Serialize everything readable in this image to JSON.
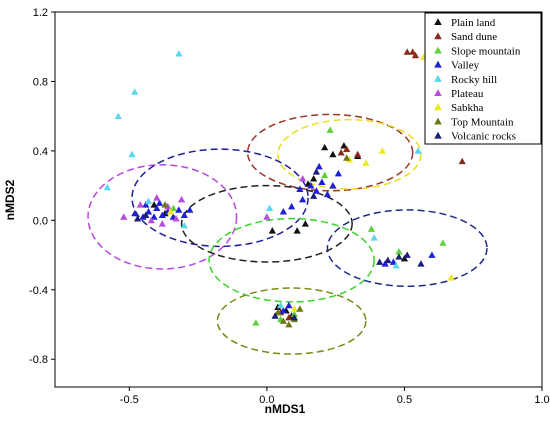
{
  "chart_data": {
    "type": "scatter",
    "xlabel": "nMDS1",
    "ylabel": "nMDS2",
    "xlim": [
      -0.77,
      1.0
    ],
    "ylim": [
      -0.96,
      1.2
    ],
    "x_ticks": [
      "-0.5",
      "0.0",
      "0.5",
      "1.0"
    ],
    "x_tick_values": [
      -0.5,
      0.0,
      0.5,
      1.0
    ],
    "y_ticks": [
      "1.2",
      "0.8",
      "0.4",
      "0.0",
      "-0.4",
      "-0.8"
    ],
    "y_tick_values": [
      1.2,
      0.8,
      0.4,
      0.0,
      -0.4,
      -0.8
    ],
    "grid": false,
    "legend_position": "top-right",
    "marker": "triangle",
    "series": [
      {
        "name": "Plain land",
        "color": "#111111",
        "points": [
          [
            0.02,
            -0.06
          ],
          [
            0.11,
            -0.06
          ],
          [
            0.14,
            -0.02
          ],
          [
            0.21,
            0.42
          ],
          [
            0.24,
            0.38
          ],
          [
            0.28,
            0.43
          ],
          [
            0.15,
            0.21
          ],
          [
            0.17,
            0.24
          ],
          [
            0.07,
            -0.52
          ],
          [
            0.04,
            -0.5
          ],
          [
            0.09,
            -0.55
          ],
          [
            0.33,
            0.37
          ],
          [
            -0.37,
            0.04
          ],
          [
            -0.41,
            0.09
          ],
          [
            0.5,
            -0.22
          ]
        ]
      },
      {
        "name": "Sand dune",
        "color": "#8b2a1a",
        "points": [
          [
            0.51,
            0.97
          ],
          [
            0.53,
            0.97
          ],
          [
            0.54,
            0.95
          ],
          [
            0.71,
            0.34
          ],
          [
            0.33,
            0.38
          ],
          [
            0.29,
            0.41
          ],
          [
            0.27,
            0.39
          ],
          [
            0.08,
            -0.56
          ],
          [
            0.05,
            -0.53
          ]
        ]
      },
      {
        "name": "Slope mountain",
        "color": "#5fd23a",
        "points": [
          [
            0.23,
            0.52
          ],
          [
            0.05,
            -0.57
          ],
          [
            -0.04,
            -0.59
          ],
          [
            0.1,
            -0.54
          ],
          [
            0.48,
            -0.18
          ],
          [
            0.64,
            -0.13
          ],
          [
            0.38,
            -0.05
          ],
          [
            -0.34,
            0.07
          ],
          [
            0.21,
            0.26
          ]
        ]
      },
      {
        "name": "Valley",
        "color": "#1f1fd6",
        "points": [
          [
            -0.48,
            0.04
          ],
          [
            -0.45,
            0.02
          ],
          [
            -0.43,
            0.05
          ],
          [
            -0.41,
            0.02
          ],
          [
            -0.4,
            0.07
          ],
          [
            -0.38,
            0.03
          ],
          [
            -0.36,
            0.05
          ],
          [
            -0.34,
            0.02
          ],
          [
            -0.32,
            0.06
          ],
          [
            -0.3,
            0.03
          ],
          [
            -0.28,
            0.06
          ],
          [
            -0.44,
            0.09
          ],
          [
            -0.39,
            0.1
          ],
          [
            0.16,
            0.2
          ],
          [
            0.18,
            0.17
          ],
          [
            0.2,
            0.22
          ],
          [
            0.22,
            0.15
          ],
          [
            0.24,
            0.2
          ],
          [
            0.13,
            0.12
          ],
          [
            0.12,
            0.18
          ],
          [
            0.26,
            0.27
          ],
          [
            0.19,
            0.31
          ],
          [
            0.06,
            0.05
          ],
          [
            0.09,
            0.08
          ],
          [
            0.46,
            -0.24
          ],
          [
            0.43,
            -0.25
          ],
          [
            0.6,
            -0.2
          ],
          [
            0.08,
            -0.49
          ],
          [
            0.06,
            -0.52
          ]
        ]
      },
      {
        "name": "Rocky hill",
        "color": "#55d8f0",
        "points": [
          [
            -0.54,
            0.6
          ],
          [
            -0.32,
            0.96
          ],
          [
            -0.48,
            0.74
          ],
          [
            -0.58,
            0.19
          ],
          [
            -0.49,
            0.38
          ],
          [
            0.55,
            0.4
          ],
          [
            0.01,
            0.07
          ],
          [
            0.39,
            -0.1
          ],
          [
            -0.3,
            -0.03
          ],
          [
            0.47,
            -0.26
          ],
          [
            0.05,
            -0.49
          ],
          [
            -0.43,
            0.11
          ]
        ]
      },
      {
        "name": "Plateau",
        "color": "#b84be0",
        "points": [
          [
            -0.4,
            0.13
          ],
          [
            -0.36,
            0.08
          ],
          [
            -0.33,
            0.01
          ],
          [
            -0.38,
            -0.02
          ],
          [
            -0.46,
            0.09
          ],
          [
            -0.31,
            0.12
          ],
          [
            -0.52,
            0.02
          ],
          [
            0.0,
            0.02
          ],
          [
            0.13,
            0.24
          ],
          [
            -0.42,
            0.0
          ]
        ]
      },
      {
        "name": "Sabkha",
        "color": "#f0e81c",
        "points": [
          [
            0.57,
            0.94
          ],
          [
            0.42,
            0.4
          ],
          [
            0.67,
            -0.33
          ],
          [
            0.3,
            0.35
          ],
          [
            -0.35,
            0.05
          ],
          [
            0.1,
            -0.51
          ],
          [
            0.36,
            0.33
          ]
        ]
      },
      {
        "name": "Top Mountain",
        "color": "#6b7a12",
        "points": [
          [
            0.08,
            -0.6
          ],
          [
            0.1,
            -0.57
          ],
          [
            0.04,
            -0.53
          ],
          [
            0.06,
            -0.58
          ],
          [
            -0.37,
            0.09
          ],
          [
            0.29,
            0.36
          ],
          [
            0.12,
            -0.51
          ]
        ]
      },
      {
        "name": "Volcanic rocks",
        "color": "#1a1f7a",
        "points": [
          [
            0.44,
            -0.23
          ],
          [
            0.48,
            -0.21
          ],
          [
            0.51,
            -0.2
          ],
          [
            0.41,
            -0.24
          ],
          [
            0.56,
            -0.25
          ],
          [
            -0.47,
            0.01
          ],
          [
            -0.44,
            0.03
          ],
          [
            0.18,
            0.28
          ],
          [
            0.1,
            -0.56
          ],
          [
            0.03,
            -0.55
          ],
          [
            0.17,
            0.14
          ]
        ]
      }
    ],
    "ellipses": [
      {
        "color": "#a0332a",
        "cx": 0.23,
        "cy": 0.39,
        "rx": 0.3,
        "ry": 0.22
      },
      {
        "color": "#e8e01a",
        "cx": 0.3,
        "cy": 0.38,
        "rx": 0.26,
        "ry": 0.2
      },
      {
        "color": "#b846e0",
        "cx": -0.38,
        "cy": 0.02,
        "rx": 0.27,
        "ry": 0.3
      },
      {
        "color": "#1e1e9a",
        "cx": -0.17,
        "cy": 0.13,
        "rx": 0.32,
        "ry": 0.28
      },
      {
        "color": "#222222",
        "cx": 0.0,
        "cy": -0.02,
        "rx": 0.31,
        "ry": 0.22
      },
      {
        "color": "#3ad22a",
        "cx": 0.09,
        "cy": -0.23,
        "rx": 0.3,
        "ry": 0.24
      },
      {
        "color": "#1e2a8a",
        "cx": 0.51,
        "cy": -0.16,
        "rx": 0.29,
        "ry": 0.22
      },
      {
        "color": "#7a8a16",
        "cx": 0.09,
        "cy": -0.58,
        "rx": 0.27,
        "ry": 0.19
      }
    ]
  }
}
